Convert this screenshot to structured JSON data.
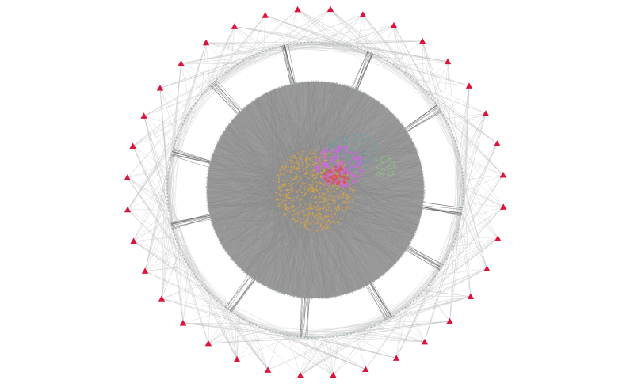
{
  "diagram": {
    "type": "network-graph",
    "layout": "concentric-radial",
    "colors": {
      "background": "#ffffff",
      "edge": "#7a7a7a",
      "edge_light": "#c8c8c8",
      "ring_node": "#9fb7b3",
      "hub_node": "#dc143c",
      "cluster_orange": "#d4a24a",
      "cluster_magenta": "#c86dd0",
      "cluster_teal": "#5e9fa8",
      "cluster_green": "#8fc48a",
      "cluster_red": "#d9534f"
    },
    "outer_hubs": {
      "count": 36,
      "shape": "triangle",
      "color_name": "red"
    },
    "middle_ring": {
      "node_count": 260
    },
    "inner_ring": {
      "node_count": 220
    },
    "core_clusters": [
      {
        "id": "orange",
        "color": "#d4a24a",
        "size": "large"
      },
      {
        "id": "magenta",
        "color": "#c86dd0",
        "size": "medium"
      },
      {
        "id": "teal",
        "color": "#5e9fa8",
        "size": "medium"
      },
      {
        "id": "green",
        "color": "#8fc48a",
        "size": "small"
      },
      {
        "id": "red",
        "color": "#d9534f",
        "size": "small"
      }
    ]
  }
}
